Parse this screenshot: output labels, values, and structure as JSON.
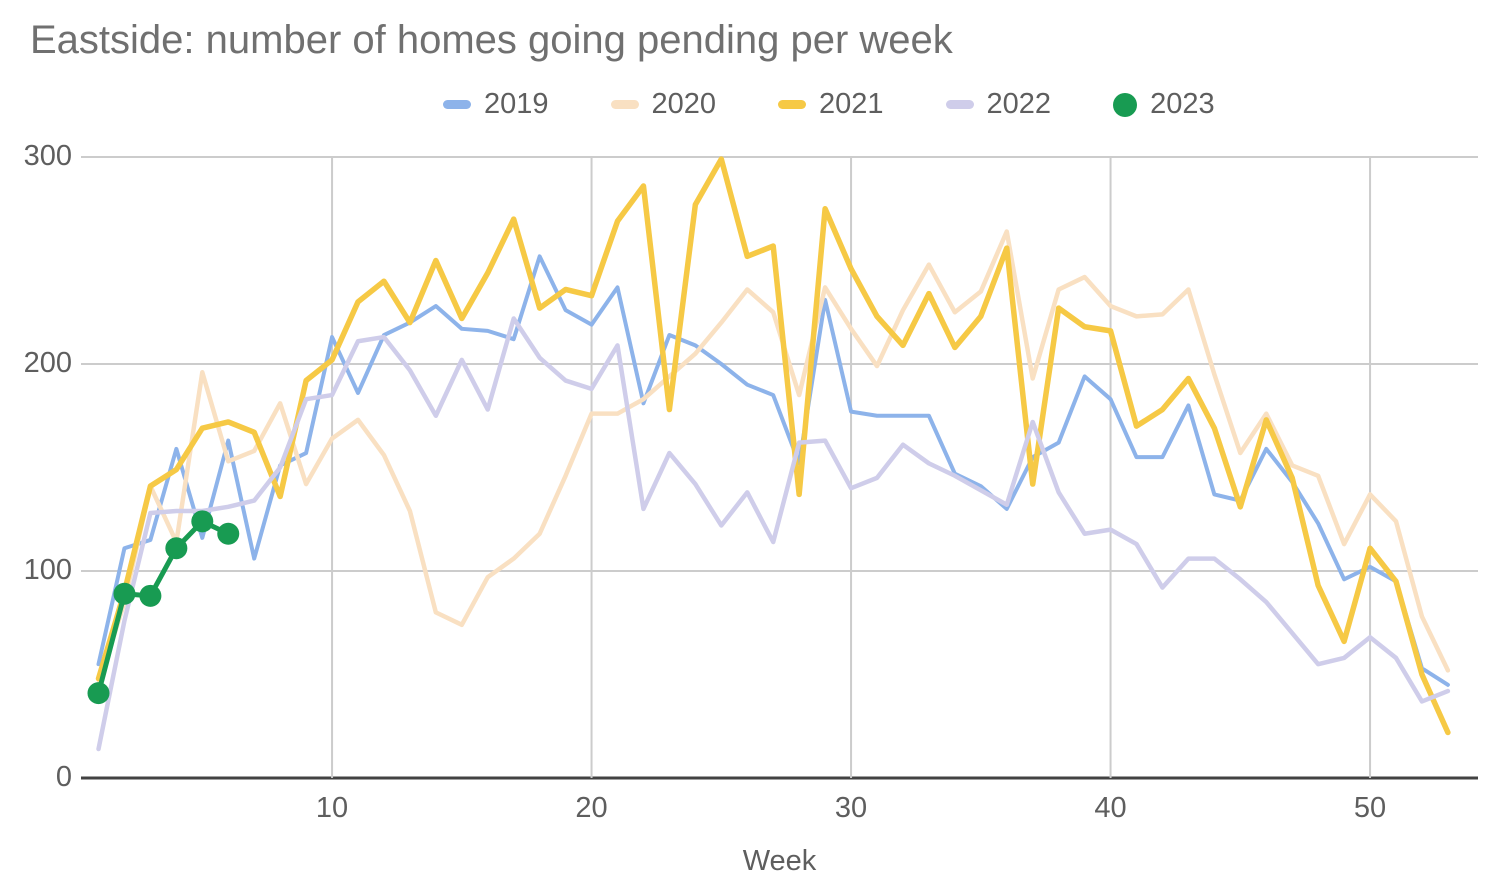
{
  "chart_data": {
    "type": "line",
    "title": "Eastside: number of homes going pending per week",
    "xlabel": "Week",
    "ylabel": "",
    "ylim": [
      0,
      300
    ],
    "xlim": [
      1,
      53
    ],
    "grid": true,
    "legend_position": "top",
    "x_ticks": [
      10,
      20,
      30,
      40,
      50
    ],
    "y_ticks": [
      0,
      100,
      200,
      300
    ],
    "x_meaning": "ISO week number, weekly data points starting at week 1",
    "series": [
      {
        "name": "2019",
        "color": "#8db3ea",
        "style": "line",
        "values": [
          55,
          111,
          115,
          159,
          116,
          163,
          106,
          151,
          157,
          213,
          186,
          214,
          220,
          228,
          217,
          216,
          212,
          252,
          226,
          219,
          237,
          181,
          214,
          209,
          200,
          190,
          185,
          152,
          231,
          177,
          175,
          175,
          175,
          147,
          141,
          130,
          155,
          162,
          194,
          183,
          155,
          155,
          180,
          137,
          134,
          159,
          143,
          123,
          96,
          102,
          95,
          53,
          45
        ]
      },
      {
        "name": "2020",
        "color": "#f9e0c2",
        "style": "line",
        "values": [
          45,
          85,
          141,
          114,
          196,
          153,
          158,
          181,
          142,
          164,
          173,
          156,
          129,
          80,
          74,
          97,
          106,
          118,
          146,
          176,
          176,
          183,
          194,
          205,
          220,
          236,
          225,
          185,
          237,
          217,
          199,
          226,
          248,
          225,
          235,
          264,
          193,
          236,
          242,
          228,
          223,
          224,
          236,
          195,
          157,
          176,
          151,
          146,
          113,
          137,
          124,
          78,
          52
        ]
      },
      {
        "name": "2021",
        "color": "#f6c945",
        "style": "line",
        "values": [
          48,
          90,
          141,
          149,
          169,
          172,
          167,
          136,
          192,
          202,
          230,
          240,
          220,
          250,
          222,
          244,
          270,
          227,
          236,
          233,
          269,
          286,
          178,
          277,
          299,
          252,
          257,
          137,
          275,
          246,
          223,
          209,
          234,
          208,
          223,
          256,
          142,
          227,
          218,
          216,
          170,
          178,
          193,
          169,
          131,
          173,
          145,
          93,
          66,
          111,
          95,
          50,
          22
        ]
      },
      {
        "name": "2022",
        "color": "#cfcdea",
        "style": "line",
        "values": [
          14,
          76,
          128,
          129,
          129,
          131,
          134,
          150,
          183,
          185,
          211,
          213,
          197,
          175,
          202,
          178,
          222,
          203,
          192,
          188,
          209,
          130,
          157,
          142,
          122,
          138,
          114,
          162,
          163,
          140,
          145,
          161,
          152,
          146,
          139,
          132,
          172,
          138,
          118,
          120,
          113,
          92,
          106,
          106,
          96,
          85,
          70,
          55,
          58,
          68,
          58,
          37,
          42
        ]
      },
      {
        "name": "2023",
        "color": "#189b52",
        "style": "line_with_points",
        "values": [
          41,
          89,
          88,
          111,
          124,
          118
        ]
      }
    ]
  },
  "colors": {
    "background": "#ffffff",
    "gridline": "#cccccc",
    "axis_line": "#424242",
    "tick_text": "#5e5e5e",
    "title_text": "#707070",
    "legend_text": "#5e5e5e"
  }
}
